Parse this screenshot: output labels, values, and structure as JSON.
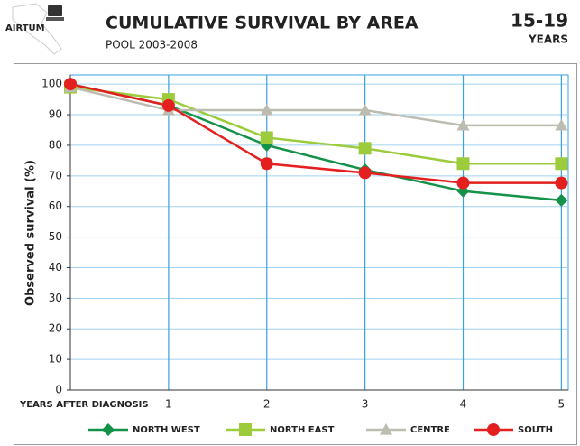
{
  "header": {
    "logo": "AIRTUM",
    "badge": "15-19",
    "badge_unit": "YEARS"
  },
  "chart_data": {
    "type": "line",
    "title": "CUMULATIVE SURVIVAL BY AREA",
    "subtitle": "POOL 2003-2008",
    "x_label": "YEARS AFTER DIAGNOSIS",
    "y_label": "Observed survival (%)",
    "x": [
      0,
      1,
      2,
      3,
      4,
      5
    ],
    "xlim": [
      0,
      5.07
    ],
    "xticks": [
      1,
      2,
      3,
      4,
      5
    ],
    "ylim": [
      0,
      103
    ],
    "yticks": [
      0,
      10,
      20,
      30,
      40,
      50,
      60,
      70,
      80,
      90,
      100
    ],
    "grid": true,
    "legend": "bottom",
    "series": [
      {
        "name": "NORTH WEST",
        "color": "#15924a",
        "marker": "diamond",
        "values": [
          100,
          93,
          80,
          72,
          65,
          62
        ]
      },
      {
        "name": "NORTH EAST",
        "color": "#9ccb3b",
        "marker": "square",
        "values": [
          99,
          95,
          82.5,
          79,
          74,
          74
        ]
      },
      {
        "name": "CENTRE",
        "color": "#bcbcb0",
        "marker": "triangle",
        "values": [
          99,
          91.5,
          91.5,
          91.5,
          86.5,
          86.5
        ]
      },
      {
        "name": "SOUTH",
        "color": "#e3201f",
        "marker": "circle",
        "values": [
          100,
          93,
          74,
          71,
          67.7,
          67.7
        ]
      }
    ]
  }
}
